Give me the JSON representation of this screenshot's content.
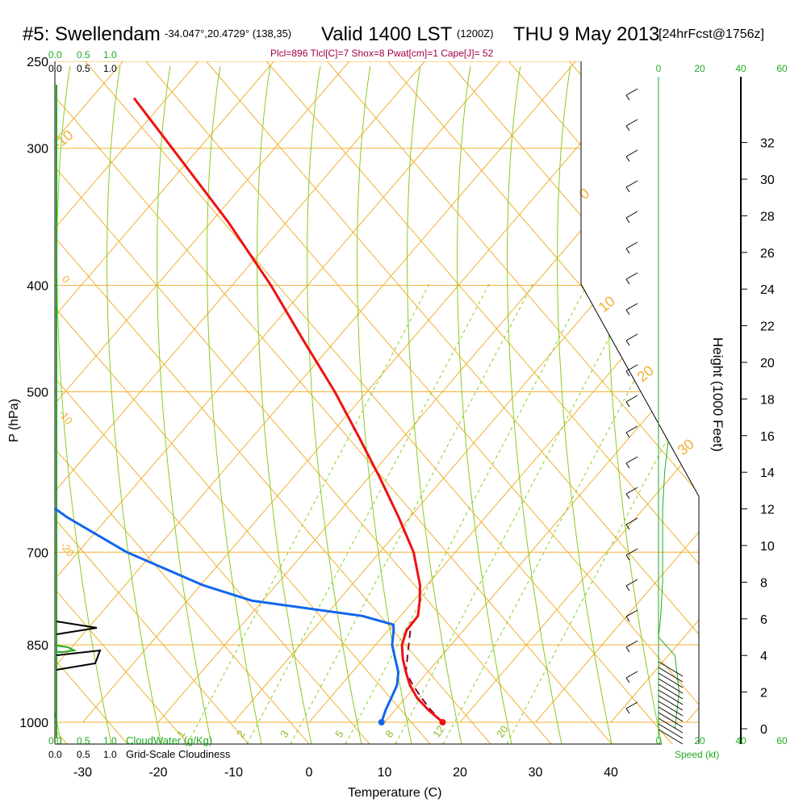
{
  "header": {
    "station": "#5: Swellendam",
    "coords": "-34.047°,20.4729° (138,35)",
    "valid": "Valid 1400 LST",
    "zulu": "(1200Z)",
    "date": "THU 9 May 2013",
    "fcst": "[24hrFcst@1756z]",
    "stats": "Plcl=896 Tlcl[C]=7 Shox=8 Pwat[cm]=1 Cape[J]= 52"
  },
  "labels": {
    "cloudwater": "CloudWater (g/Kg)",
    "cloudiness": "Grid-Scale Cloudiness",
    "speed": "Speed (kt)"
  },
  "colors": {
    "isotherm": "#f0b030",
    "dry_adiabat": "#88cc22",
    "temperature": "#ee1111",
    "dewpoint": "#1166ee",
    "parcel": "#880033",
    "green_axis": "#22aa22"
  },
  "chart_data": {
    "type": "line",
    "title": "#5: Swellendam -34.047°,20.4729° (138,35) Valid 1400 LST (1200Z) THU 9 May 2013 [24hrFcst@1756z]",
    "xlabel": "Temperature (C)",
    "ylabel": "P (hPa)",
    "y2label": "Height (1000 Feet)",
    "xlim": [
      -34,
      36
    ],
    "ylim": [
      1000,
      250
    ],
    "x_ticks": [
      "-30",
      "-20",
      "-10",
      "0",
      "10",
      "20",
      "30",
      "40"
    ],
    "y_ticks": [
      "250",
      "300",
      "400",
      "500",
      "700",
      "850",
      "1000"
    ],
    "height_ticks": [
      "0",
      "2",
      "4",
      "6",
      "8",
      "10",
      "12",
      "14",
      "16",
      "18",
      "20",
      "22",
      "24",
      "26",
      "28",
      "30",
      "32"
    ],
    "top_ticks_green": [
      "0.0",
      "0.5",
      "1.0"
    ],
    "top_ticks_black": [
      "0.0",
      "0.5",
      "1.0"
    ],
    "speed_ticks": [
      "0",
      "20",
      "40",
      "60"
    ],
    "isotherm_labels": [
      "-10",
      "0",
      "10",
      "20",
      "30",
      "0",
      "-10",
      "-20"
    ],
    "mixing_ratio_labels": [
      "1",
      "2",
      "3",
      "5",
      "8",
      "12",
      "20"
    ],
    "series": [
      {
        "name": "Temperature",
        "pressure": [
          1000,
          975,
          950,
          925,
          900,
          875,
          850,
          825,
          800,
          775,
          750,
          700,
          650,
          600,
          550,
          500,
          450,
          400,
          350,
          300,
          270
        ],
        "values": [
          17.7,
          15.5,
          13.6,
          12.3,
          11.4,
          10.6,
          10.1,
          10.3,
          11.4,
          11.2,
          10.8,
          9.0,
          6.0,
          2.5,
          -1.5,
          -6.0,
          -11.5,
          -17.5,
          -25.0,
          -34.5,
          -41.0
        ]
      },
      {
        "name": "Dewpoint",
        "pressure": [
          1000,
          975,
          950,
          925,
          900,
          875,
          850,
          825,
          815,
          800,
          775,
          750,
          700,
          650,
          600,
          500,
          480,
          400,
          370,
          350,
          300,
          270
        ],
        "values": [
          9.6,
          9.8,
          10.2,
          10.6,
          10.4,
          9.6,
          8.8,
          8.6,
          8.4,
          4.0,
          -11.0,
          -18.0,
          -29.0,
          -38.0,
          -46.0,
          -60.0,
          -63.0,
          -51.0,
          -49.5,
          -49.5,
          -51.0,
          -55.0
        ]
      },
      {
        "name": "Parcel",
        "pressure": [
          1000,
          975,
          950,
          925,
          900,
          875,
          850,
          825,
          810
        ],
        "values": [
          17.7,
          15.8,
          14.2,
          12.7,
          11.4,
          11.2,
          11.0,
          10.8,
          10.7
        ]
      },
      {
        "name": "Cloudiness",
        "pressure": [
          810,
          800,
          790,
          850,
          840,
          880,
          900
        ],
        "values": [
          0,
          0.9,
          0,
          0,
          1.0,
          1.0,
          0
        ]
      },
      {
        "name": "Wind speed",
        "height_kft": [
          0,
          1,
          2,
          3,
          4,
          5,
          6,
          8,
          10,
          12,
          14,
          16,
          18,
          20,
          22,
          24,
          26,
          28,
          30,
          32
        ],
        "values": [
          8,
          9,
          10,
          9,
          8,
          0,
          1,
          2,
          2,
          2,
          3,
          5,
          10,
          16,
          25,
          35,
          38,
          39,
          40,
          42
        ]
      }
    ]
  }
}
